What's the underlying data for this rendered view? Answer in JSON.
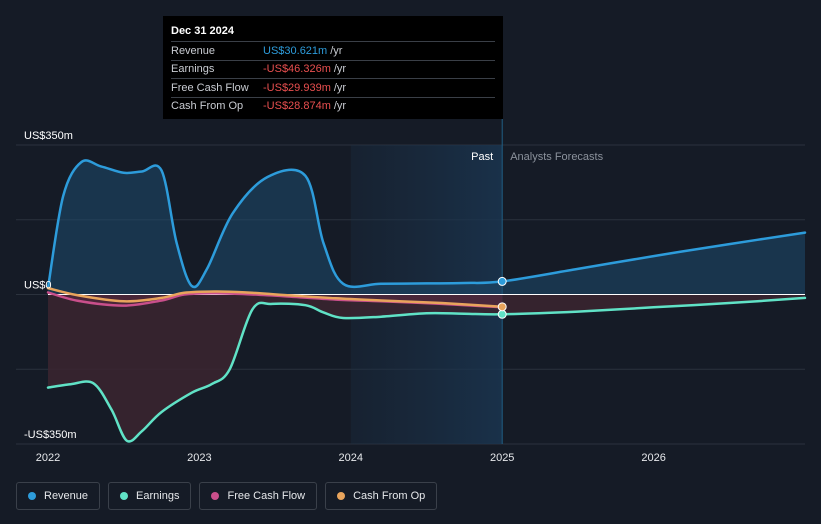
{
  "tooltip": {
    "date": "Dec 31 2024",
    "rows": [
      {
        "label": "Revenue",
        "value": "US$30.621m",
        "unit": "/yr",
        "color": "#2d9cdb"
      },
      {
        "label": "Earnings",
        "value": "-US$46.326m",
        "unit": "/yr",
        "color": "#e94f4f"
      },
      {
        "label": "Free Cash Flow",
        "value": "-US$29.939m",
        "unit": "/yr",
        "color": "#e94f4f"
      },
      {
        "label": "Cash From Op",
        "value": "-US$28.874m",
        "unit": "/yr",
        "color": "#e94f4f"
      }
    ]
  },
  "regions": {
    "past": "Past",
    "forecast": "Analysts Forecasts"
  },
  "legend": [
    {
      "label": "Revenue",
      "color": "#2d9cdb"
    },
    {
      "label": "Earnings",
      "color": "#60e2c6"
    },
    {
      "label": "Free Cash Flow",
      "color": "#c94f8b"
    },
    {
      "label": "Cash From Op",
      "color": "#e8a45c"
    }
  ],
  "chart_data": {
    "type": "line",
    "y_tick_labels": [
      "US$350m",
      "US$0",
      "-US$350m"
    ],
    "y_ticks": [
      350,
      0,
      -350
    ],
    "ylim": [
      -350,
      350
    ],
    "xlim": [
      2022,
      2027
    ],
    "x_tick_labels": [
      "2022",
      "2023",
      "2024",
      "2025",
      "2026"
    ],
    "x_ticks": [
      2022,
      2023,
      2024,
      2025,
      2026
    ],
    "past_start": 2024,
    "forecast_start": 2025,
    "series": [
      {
        "name": "Revenue",
        "color": "#2d9cdb",
        "x": [
          2022,
          2022.1,
          2022.22,
          2022.35,
          2022.5,
          2022.62,
          2022.75,
          2022.85,
          2022.95,
          2023.05,
          2023.22,
          2023.45,
          2023.7,
          2023.82,
          2023.95,
          2024.2,
          2024.5,
          2024.75,
          2025,
          2025.5,
          2026,
          2026.5,
          2027
        ],
        "y": [
          15,
          230,
          310,
          300,
          285,
          288,
          290,
          120,
          20,
          60,
          190,
          275,
          278,
          120,
          25,
          25,
          26,
          27,
          30.621,
          60,
          90,
          118,
          145
        ]
      },
      {
        "name": "Earnings",
        "color": "#60e2c6",
        "x": [
          2022,
          2022.15,
          2022.3,
          2022.42,
          2022.52,
          2022.62,
          2022.75,
          2022.95,
          2023.08,
          2023.2,
          2023.35,
          2023.48,
          2023.7,
          2023.82,
          2023.95,
          2024.2,
          2024.5,
          2024.75,
          2025,
          2025.5,
          2026,
          2026.5,
          2027
        ],
        "y": [
          -218,
          -210,
          -208,
          -270,
          -342,
          -320,
          -275,
          -230,
          -210,
          -175,
          -35,
          -22,
          -25,
          -42,
          -55,
          -52,
          -44,
          -45,
          -46.326,
          -40,
          -30,
          -20,
          -8
        ]
      },
      {
        "name": "Free Cash Flow",
        "color": "#c94f8b",
        "x": [
          2022,
          2022.2,
          2022.5,
          2022.75,
          2022.9,
          2023.1,
          2023.3,
          2023.6,
          2023.9,
          2024.2,
          2024.6,
          2025
        ],
        "y": [
          5,
          -15,
          -26,
          -14,
          0,
          3,
          1,
          -5,
          -12,
          -16,
          -22,
          -29.939
        ]
      },
      {
        "name": "Cash From Op",
        "color": "#e8a45c",
        "x": [
          2022,
          2022.2,
          2022.5,
          2022.75,
          2022.9,
          2023.1,
          2023.3,
          2023.6,
          2023.9,
          2024.2,
          2024.6,
          2025
        ],
        "y": [
          15,
          -2,
          -16,
          -8,
          4,
          7,
          5,
          -2,
          -9,
          -14,
          -20,
          -28.874
        ]
      }
    ]
  }
}
